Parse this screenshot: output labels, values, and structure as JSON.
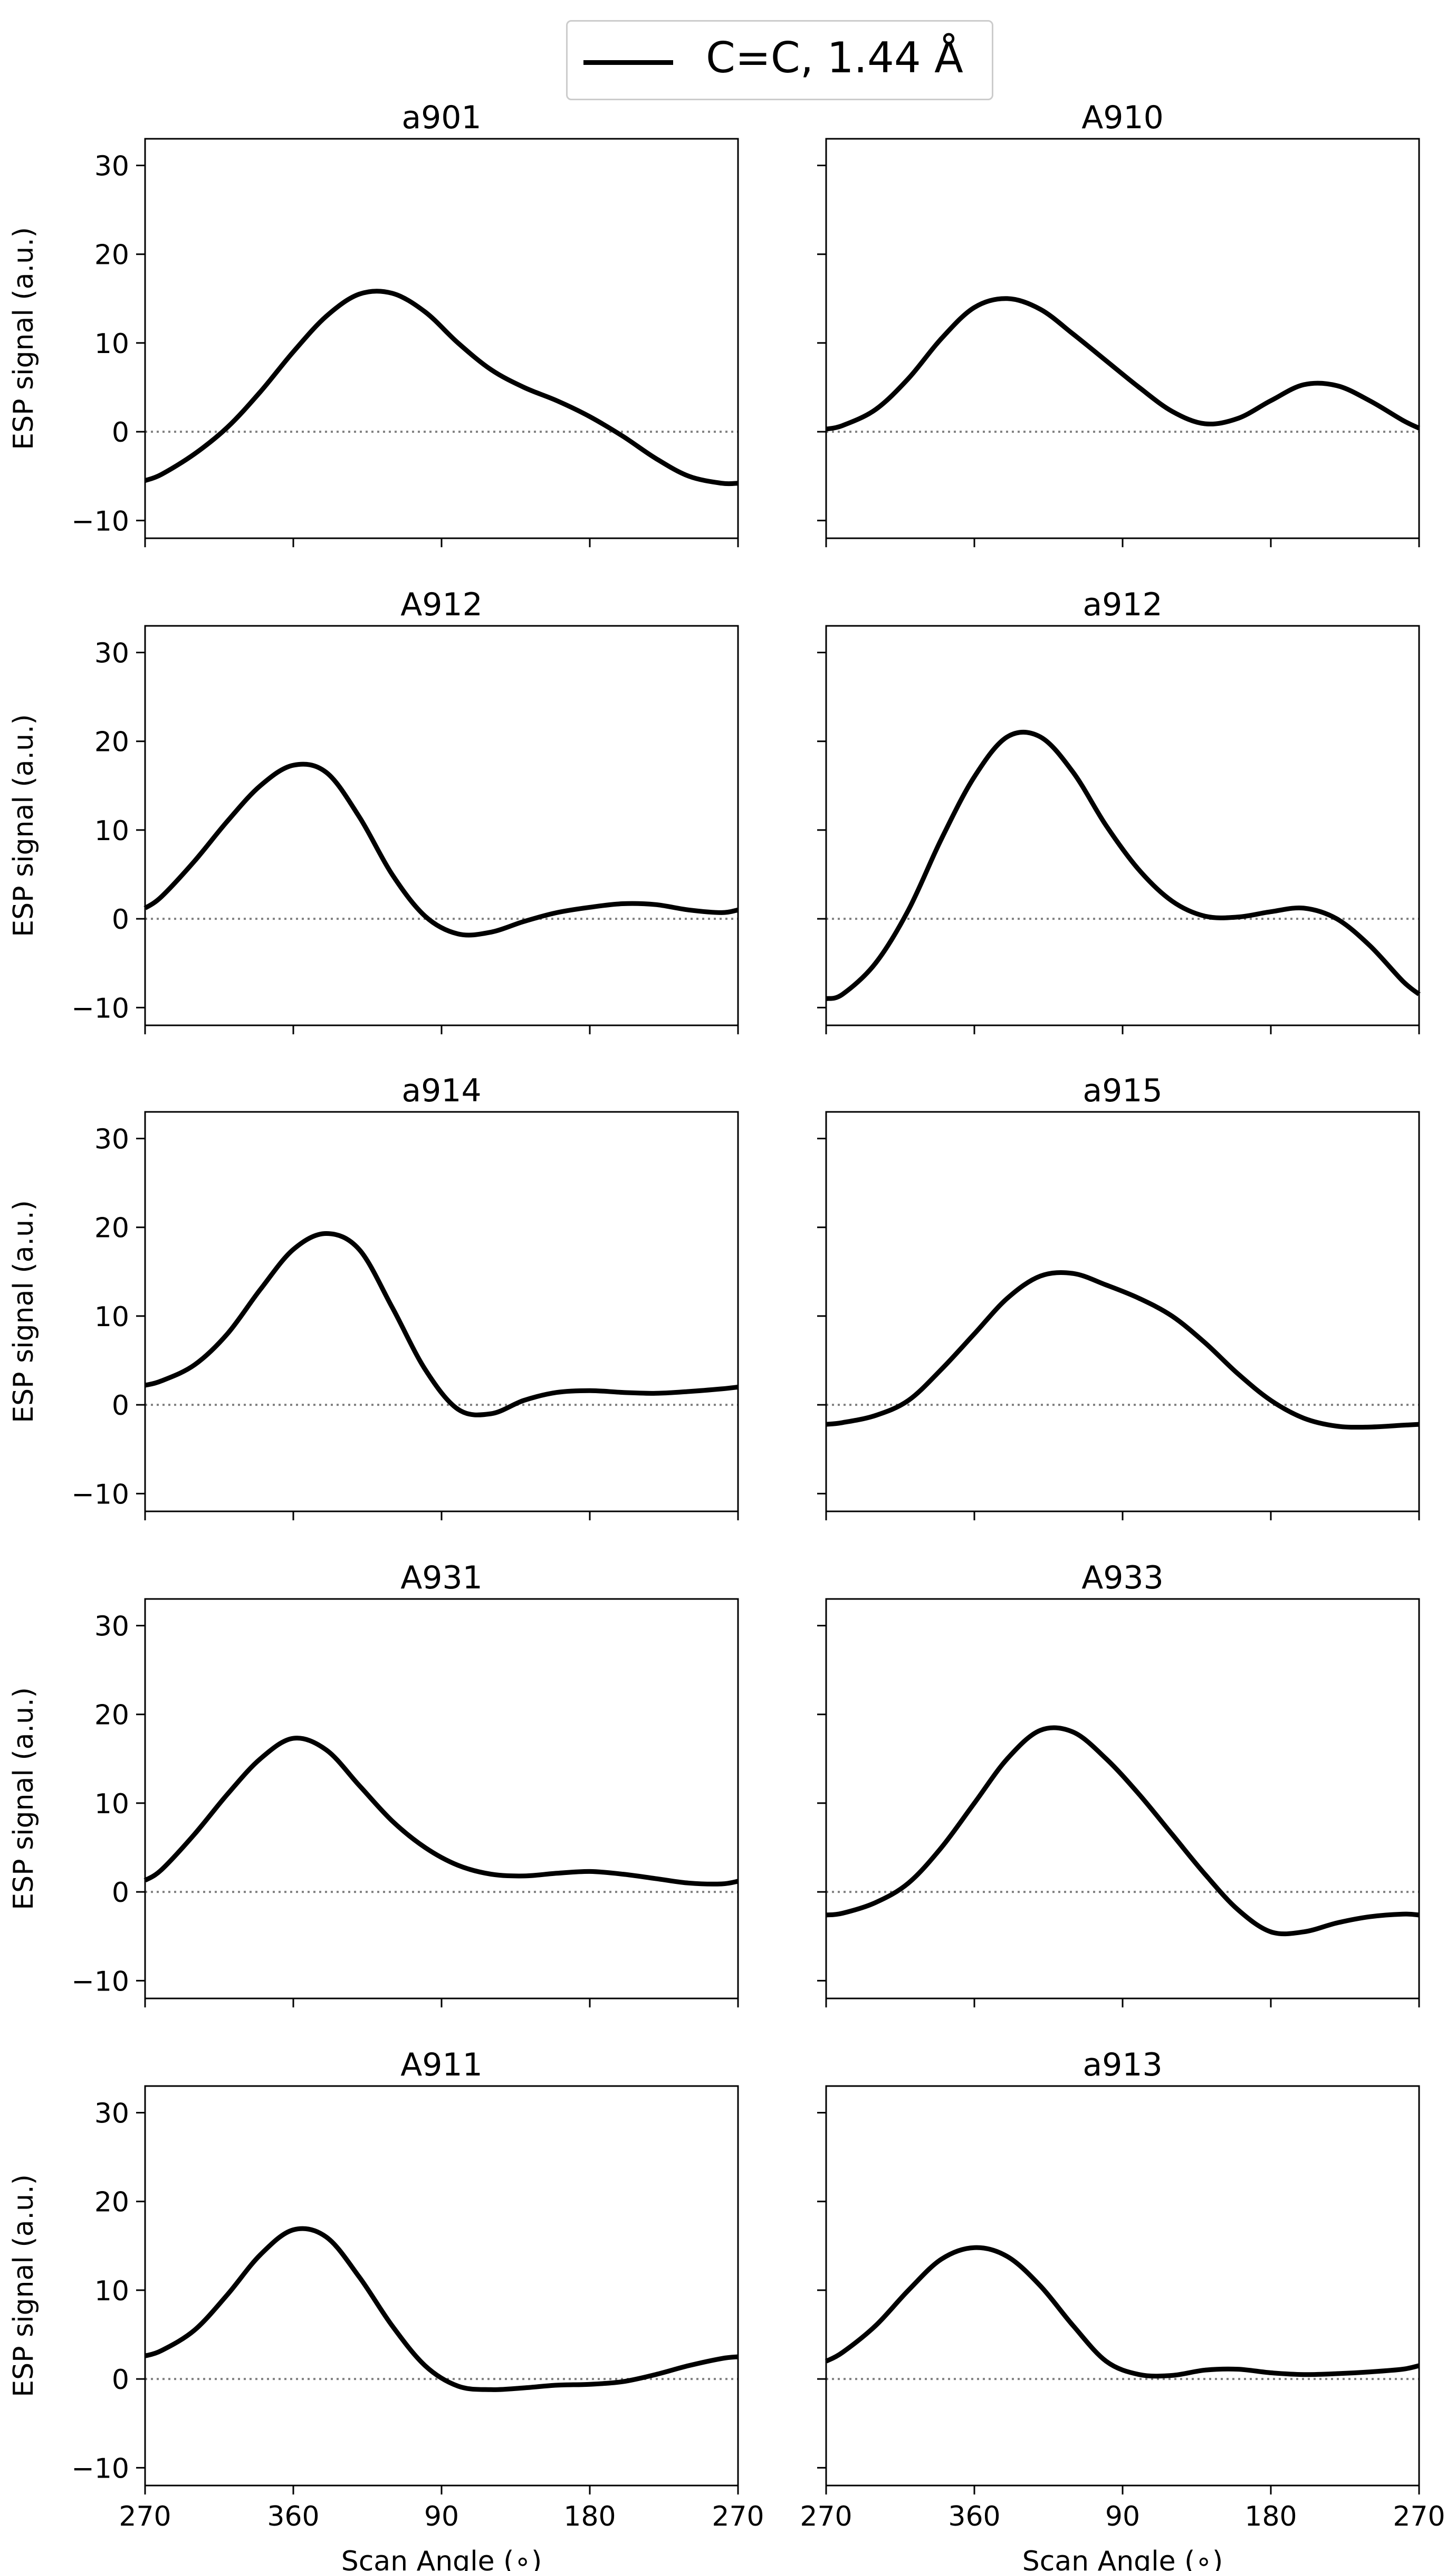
{
  "legend": {
    "label": "C=C, 1.44 Å",
    "color": "#000000"
  },
  "chart_data": {
    "type": "line",
    "layout": "5 rows x 2 columns, shared axes",
    "ylabel": "ESP signal (a.u.)",
    "xlabel": "Scan Angle ($^\\circ$)",
    "xlabel_display": "Scan Angle (∘)",
    "xtick_labels": [
      "270",
      "360",
      "90",
      "180",
      "270"
    ],
    "x_unwrapped_degrees": [
      270,
      360,
      450,
      540,
      630
    ],
    "xlim_unwrapped": [
      270,
      630
    ],
    "ylim": [
      -12,
      33
    ],
    "yticks": [
      -10,
      0,
      10,
      20,
      30
    ],
    "reference_line": {
      "y": 0,
      "style": "dotted",
      "color": "#808080"
    },
    "line_color": "#000000",
    "series_name": "C=C, 1.44 Å",
    "panels": [
      {
        "title": "a901",
        "x": [
          270,
          280,
          300,
          320,
          340,
          360,
          380,
          400,
          420,
          440,
          460,
          480,
          500,
          520,
          540,
          560,
          580,
          600,
          620,
          630
        ],
        "y": [
          -5.5,
          -4.8,
          -2.5,
          0.5,
          4.5,
          9,
          13,
          15.5,
          15.6,
          13.5,
          10,
          7,
          5,
          3.5,
          1.7,
          -0.5,
          -3,
          -5,
          -5.8,
          -5.8
        ]
      },
      {
        "title": "A910",
        "x": [
          270,
          280,
          300,
          320,
          340,
          360,
          380,
          400,
          420,
          440,
          460,
          480,
          500,
          520,
          540,
          560,
          580,
          600,
          620,
          630
        ],
        "y": [
          0.3,
          0.7,
          2.5,
          6,
          10.5,
          14,
          15,
          13.8,
          11,
          8,
          5,
          2.3,
          0.9,
          1.5,
          3.5,
          5.3,
          5.2,
          3.5,
          1.3,
          0.4
        ]
      },
      {
        "title": "A912",
        "x": [
          270,
          280,
          300,
          320,
          340,
          360,
          380,
          400,
          420,
          440,
          460,
          480,
          500,
          520,
          540,
          560,
          580,
          600,
          620,
          630
        ],
        "y": [
          1.2,
          2.5,
          6.5,
          11,
          15,
          17.3,
          16.5,
          11.5,
          5,
          0.3,
          -1.7,
          -1.5,
          -0.3,
          0.7,
          1.3,
          1.7,
          1.6,
          1.0,
          0.7,
          1.0
        ]
      },
      {
        "title": "a912",
        "x": [
          270,
          280,
          300,
          320,
          340,
          360,
          380,
          400,
          420,
          440,
          460,
          480,
          500,
          520,
          540,
          560,
          580,
          600,
          620,
          630
        ],
        "y": [
          -9,
          -8.5,
          -5,
          1,
          9,
          16,
          20.5,
          20.5,
          16.5,
          10.5,
          5.5,
          2,
          0.3,
          0.2,
          0.8,
          1.2,
          0,
          -3,
          -7,
          -8.5
        ]
      },
      {
        "title": "a914",
        "x": [
          270,
          280,
          300,
          320,
          340,
          360,
          380,
          400,
          420,
          440,
          460,
          480,
          500,
          520,
          540,
          560,
          580,
          600,
          620,
          630
        ],
        "y": [
          2.2,
          2.7,
          4.5,
          8,
          13,
          17.5,
          19.3,
          17.5,
          11,
          4,
          -0.5,
          -1,
          0.5,
          1.4,
          1.6,
          1.4,
          1.3,
          1.5,
          1.8,
          2.0
        ]
      },
      {
        "title": "a915",
        "x": [
          270,
          280,
          300,
          320,
          340,
          360,
          380,
          400,
          420,
          440,
          460,
          480,
          500,
          520,
          540,
          560,
          580,
          600,
          620,
          630
        ],
        "y": [
          -2.2,
          -2,
          -1.2,
          0.5,
          4,
          8,
          12,
          14.5,
          14.8,
          13.5,
          12,
          10,
          7,
          3.5,
          0.5,
          -1.5,
          -2.4,
          -2.5,
          -2.3,
          -2.2
        ]
      },
      {
        "title": "A931",
        "x": [
          270,
          280,
          300,
          320,
          340,
          360,
          380,
          400,
          420,
          440,
          460,
          480,
          500,
          520,
          540,
          560,
          580,
          600,
          620,
          630
        ],
        "y": [
          1.3,
          2.5,
          6.5,
          11,
          15,
          17.3,
          16,
          12,
          8,
          5,
          3,
          2,
          1.8,
          2.1,
          2.3,
          2,
          1.5,
          1,
          0.9,
          1.2
        ]
      },
      {
        "title": "A933",
        "x": [
          270,
          280,
          300,
          320,
          340,
          360,
          380,
          400,
          420,
          440,
          460,
          480,
          500,
          520,
          540,
          560,
          580,
          600,
          620,
          630
        ],
        "y": [
          -2.6,
          -2.4,
          -1.2,
          1,
          5,
          10,
          15,
          18.2,
          18,
          15,
          11,
          6.5,
          2,
          -2,
          -4.5,
          -4.5,
          -3.5,
          -2.8,
          -2.5,
          -2.6
        ]
      },
      {
        "title": "A911",
        "x": [
          270,
          280,
          300,
          320,
          340,
          360,
          380,
          400,
          420,
          440,
          460,
          480,
          500,
          520,
          540,
          560,
          580,
          600,
          620,
          630
        ],
        "y": [
          2.6,
          3.2,
          5.5,
          9.5,
          14,
          16.8,
          16,
          11.5,
          6,
          1.5,
          -0.8,
          -1.2,
          -1,
          -0.7,
          -0.6,
          -0.3,
          0.5,
          1.5,
          2.3,
          2.5
        ]
      },
      {
        "title": "a913",
        "x": [
          270,
          280,
          300,
          320,
          340,
          360,
          380,
          400,
          420,
          440,
          460,
          480,
          500,
          520,
          540,
          560,
          580,
          600,
          620,
          630
        ],
        "y": [
          2,
          3,
          6,
          10,
          13.5,
          14.8,
          13.8,
          10.5,
          6,
          2,
          0.5,
          0.4,
          1,
          1.1,
          0.7,
          0.5,
          0.6,
          0.8,
          1.1,
          1.5
        ]
      }
    ]
  }
}
